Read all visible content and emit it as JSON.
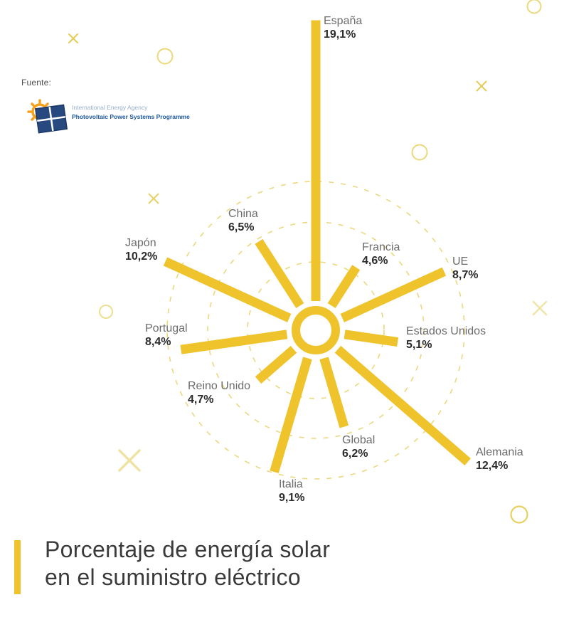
{
  "source": {
    "label": "Fuente:",
    "logo": {
      "line1": "International Energy Agency",
      "line2": "Photovoltaic Power Systems Programme"
    }
  },
  "chart_data": {
    "type": "bar",
    "variant": "radial-sun-rays",
    "title": "Porcentaje de energía solar en el suministro eléctrico",
    "unit": "%",
    "categories": [
      "España",
      "Francia",
      "UE",
      "Estados Unidos",
      "Alemania",
      "Global",
      "Italia",
      "Reino Unido",
      "Portugal",
      "Japón",
      "China"
    ],
    "values": [
      19.1,
      4.6,
      8.7,
      5.1,
      12.4,
      6.2,
      9.1,
      4.7,
      8.4,
      10.2,
      6.5
    ],
    "value_labels": [
      "19,1%",
      "4,6%",
      "8,7%",
      "5,1%",
      "12,4%",
      "6,2%",
      "9,1%",
      "4,7%",
      "8,4%",
      "10,2%",
      "6,5%"
    ],
    "start_angle_deg": 0,
    "angle_step_deg": 32.727,
    "accent_color": "#EFC32B",
    "grid": "three dashed concentric circles",
    "legend": "none",
    "xlabel": "",
    "ylabel": ""
  },
  "title": {
    "line1": "Porcentaje de energía solar",
    "line2": "en el suministro eléctrico"
  }
}
